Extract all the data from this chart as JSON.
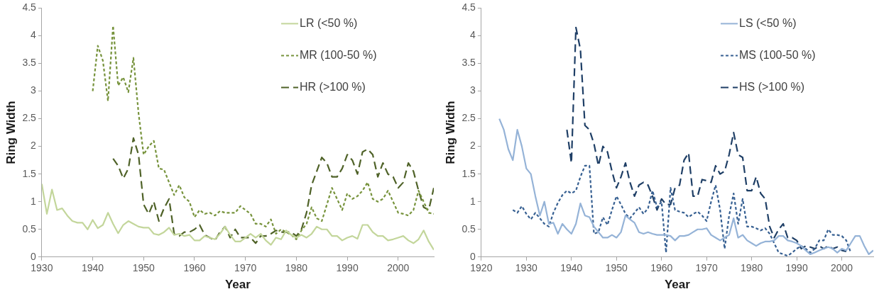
{
  "chart_data": [
    {
      "type": "line",
      "xlabel": "Year",
      "ylabel": "Ring Width",
      "xlim": [
        1930,
        2007
      ],
      "xticks": [
        1930,
        1940,
        1950,
        1960,
        1970,
        1980,
        1990,
        2000
      ],
      "ylim": [
        0,
        4.5
      ],
      "yticks": [
        0,
        0.5,
        1,
        1.5,
        2,
        2.5,
        3,
        3.5,
        4,
        4.5
      ],
      "grid": false,
      "legend": "top right",
      "marker": "none",
      "x": [
        1930,
        1931,
        1932,
        1933,
        1934,
        1935,
        1936,
        1937,
        1938,
        1939,
        1940,
        1941,
        1942,
        1943,
        1944,
        1945,
        1946,
        1947,
        1948,
        1949,
        1950,
        1951,
        1952,
        1953,
        1954,
        1955,
        1956,
        1957,
        1958,
        1959,
        1960,
        1961,
        1962,
        1963,
        1964,
        1965,
        1966,
        1967,
        1968,
        1969,
        1970,
        1971,
        1972,
        1973,
        1974,
        1975,
        1976,
        1977,
        1978,
        1979,
        1980,
        1981,
        1982,
        1983,
        1984,
        1985,
        1986,
        1987,
        1988,
        1989,
        1990,
        1991,
        1992,
        1993,
        1994,
        1995,
        1996,
        1997,
        1998,
        1999,
        2000,
        2001,
        2002,
        2003,
        2004,
        2005,
        2006,
        2007
      ],
      "series": [
        {
          "name": "LR (<50 %)",
          "color": "#c3d69b",
          "line_style": "solid",
          "values": [
            1.32,
            0.78,
            1.22,
            0.85,
            0.88,
            0.75,
            0.65,
            0.62,
            0.62,
            0.5,
            0.67,
            0.52,
            0.58,
            0.8,
            0.6,
            0.43,
            0.58,
            0.65,
            0.6,
            0.55,
            0.53,
            0.53,
            0.42,
            0.4,
            0.45,
            0.53,
            0.4,
            0.42,
            0.38,
            0.4,
            0.3,
            0.3,
            0.38,
            0.35,
            0.32,
            0.42,
            0.55,
            0.4,
            0.28,
            0.28,
            0.35,
            0.42,
            0.35,
            0.42,
            0.3,
            0.22,
            0.35,
            0.32,
            0.48,
            0.4,
            0.35,
            0.4,
            0.35,
            0.42,
            0.55,
            0.5,
            0.5,
            0.38,
            0.38,
            0.3,
            0.35,
            0.38,
            0.33,
            0.58,
            0.58,
            0.45,
            0.38,
            0.38,
            0.3,
            0.32,
            0.35,
            0.38,
            0.3,
            0.25,
            0.32,
            0.48,
            0.28,
            0.13
          ]
        },
        {
          "name": "MR (100-50 %)",
          "color": "#77933c",
          "line_style": "dotted",
          "values": [
            null,
            null,
            null,
            null,
            null,
            null,
            null,
            null,
            null,
            null,
            3.0,
            3.82,
            3.55,
            2.82,
            4.18,
            3.1,
            3.25,
            2.98,
            3.6,
            2.6,
            1.85,
            2.0,
            2.1,
            1.6,
            1.58,
            1.35,
            1.12,
            1.3,
            1.08,
            1.0,
            0.72,
            0.85,
            0.78,
            0.8,
            0.75,
            0.83,
            0.8,
            0.8,
            0.8,
            0.92,
            0.85,
            0.78,
            0.6,
            0.6,
            0.55,
            0.68,
            0.42,
            0.5,
            0.45,
            0.4,
            0.32,
            0.48,
            0.6,
            0.9,
            0.7,
            0.65,
            0.95,
            1.25,
            1.05,
            0.85,
            1.15,
            1.05,
            1.1,
            1.2,
            1.35,
            1.05,
            1.0,
            1.05,
            1.2,
            1.0,
            0.8,
            0.78,
            0.75,
            0.85,
            1.2,
            1.0,
            0.8,
            0.78
          ]
        },
        {
          "name": "HR (>100 %)",
          "color": "#4f6228",
          "line_style": "dashed",
          "values": [
            null,
            null,
            null,
            null,
            null,
            null,
            null,
            null,
            null,
            null,
            null,
            null,
            null,
            null,
            1.78,
            1.65,
            1.42,
            1.6,
            2.15,
            1.85,
            0.95,
            0.78,
            1.0,
            0.65,
            0.88,
            1.05,
            0.42,
            0.38,
            0.45,
            0.45,
            0.5,
            0.58,
            0.4,
            0.35,
            0.3,
            0.45,
            0.55,
            0.35,
            0.5,
            0.35,
            0.35,
            0.35,
            0.25,
            0.38,
            0.38,
            0.42,
            0.48,
            0.45,
            0.45,
            0.45,
            0.38,
            0.5,
            0.8,
            1.3,
            1.55,
            1.8,
            1.7,
            1.45,
            1.45,
            1.6,
            1.85,
            1.75,
            1.5,
            1.9,
            1.95,
            1.85,
            1.45,
            1.7,
            1.5,
            1.45,
            1.25,
            1.35,
            1.7,
            1.55,
            1.2,
            0.9,
            0.85,
            1.25
          ]
        }
      ]
    },
    {
      "type": "line",
      "xlabel": "Year",
      "ylabel": "Ring Width",
      "xlim": [
        1920,
        2007
      ],
      "xticks": [
        1920,
        1930,
        1940,
        1950,
        1960,
        1970,
        1980,
        1990,
        2000
      ],
      "ylim": [
        0,
        4.5
      ],
      "yticks": [
        0,
        0.5,
        1,
        1.5,
        2,
        2.5,
        3,
        3.5,
        4,
        4.5
      ],
      "grid": false,
      "legend": "top right",
      "marker": "none",
      "x": [
        1924,
        1925,
        1926,
        1927,
        1928,
        1929,
        1930,
        1931,
        1932,
        1933,
        1934,
        1935,
        1936,
        1937,
        1938,
        1939,
        1940,
        1941,
        1942,
        1943,
        1944,
        1945,
        1946,
        1947,
        1948,
        1949,
        1950,
        1951,
        1952,
        1953,
        1954,
        1955,
        1956,
        1957,
        1958,
        1959,
        1960,
        1961,
        1962,
        1963,
        1964,
        1965,
        1966,
        1967,
        1968,
        1969,
        1970,
        1971,
        1972,
        1973,
        1974,
        1975,
        1976,
        1977,
        1978,
        1979,
        1980,
        1981,
        1982,
        1983,
        1984,
        1985,
        1986,
        1987,
        1988,
        1989,
        1990,
        1991,
        1992,
        1993,
        1994,
        1995,
        1996,
        1997,
        1998,
        1999,
        2000,
        2001,
        2002,
        2003,
        2004,
        2005,
        2006,
        2007
      ],
      "series": [
        {
          "name": "LS (<50 %)",
          "color": "#95b3d7",
          "line_style": "solid",
          "values": [
            2.5,
            2.3,
            1.95,
            1.75,
            2.3,
            2.0,
            1.6,
            1.5,
            1.1,
            0.75,
            1.0,
            0.6,
            0.62,
            0.42,
            0.6,
            0.5,
            0.42,
            0.6,
            0.97,
            0.75,
            0.72,
            0.55,
            0.45,
            0.35,
            0.35,
            0.4,
            0.35,
            0.45,
            0.75,
            0.68,
            0.62,
            0.45,
            0.42,
            0.45,
            0.42,
            0.4,
            0.4,
            0.4,
            0.38,
            0.3,
            0.38,
            0.38,
            0.4,
            0.45,
            0.5,
            0.5,
            0.52,
            0.4,
            0.35,
            0.3,
            0.35,
            0.4,
            0.7,
            0.35,
            0.4,
            0.3,
            0.25,
            0.2,
            0.25,
            0.28,
            0.28,
            0.3,
            0.38,
            0.38,
            0.3,
            0.28,
            0.25,
            0.2,
            0.12,
            0.05,
            0.08,
            0.12,
            0.15,
            0.18,
            0.15,
            0.08,
            0.15,
            0.12,
            0.25,
            0.38,
            0.38,
            0.2,
            0.05,
            0.12
          ]
        },
        {
          "name": "MS (100-50 %)",
          "color": "#376092",
          "line_style": "dotted",
          "values": [
            null,
            null,
            null,
            0.85,
            0.8,
            0.92,
            0.78,
            0.68,
            0.8,
            0.7,
            0.6,
            0.55,
            0.8,
            0.98,
            1.12,
            1.2,
            1.15,
            1.2,
            1.45,
            1.65,
            1.65,
            0.42,
            0.45,
            0.72,
            0.58,
            0.85,
            1.1,
            0.95,
            0.78,
            0.7,
            0.8,
            0.9,
            0.78,
            0.88,
            1.2,
            0.9,
            1.0,
            0.08,
            1.25,
            0.85,
            0.82,
            0.8,
            0.72,
            0.78,
            0.82,
            0.75,
            0.65,
            1.0,
            1.3,
            0.85,
            0.15,
            0.75,
            1.15,
            0.6,
            1.05,
            0.55,
            0.55,
            0.52,
            0.48,
            0.52,
            0.42,
            0.25,
            0.08,
            0.05,
            0.02,
            0.08,
            0.15,
            0.2,
            0.15,
            0.08,
            0.15,
            0.3,
            0.3,
            0.5,
            0.4,
            0.4,
            0.38,
            0.3,
            0.08,
            null,
            null,
            null,
            null,
            null
          ]
        },
        {
          "name": "HS (>100 %)",
          "color": "#1f3f66",
          "line_style": "dashed",
          "values": [
            null,
            null,
            null,
            null,
            null,
            null,
            null,
            null,
            null,
            null,
            null,
            null,
            null,
            null,
            null,
            2.3,
            1.7,
            4.15,
            3.75,
            2.38,
            2.3,
            2.05,
            1.65,
            2.0,
            1.9,
            1.55,
            1.25,
            1.45,
            1.7,
            1.35,
            1.1,
            1.3,
            1.35,
            1.3,
            1.1,
            0.85,
            1.05,
            0.95,
            0.95,
            1.25,
            1.3,
            1.75,
            1.88,
            1.1,
            1.1,
            1.4,
            1.38,
            1.35,
            1.65,
            1.5,
            1.55,
            1.85,
            2.25,
            1.85,
            1.8,
            1.2,
            1.2,
            1.45,
            1.15,
            1.05,
            0.55,
            0.35,
            0.5,
            0.6,
            0.35,
            0.35,
            0.3,
            0.15,
            0.2,
            0.18,
            0.15,
            0.2,
            0.15,
            0.2,
            0.15,
            0.18,
            0.12,
            0.1,
            null,
            null,
            null,
            null,
            null,
            null
          ]
        }
      ]
    }
  ]
}
